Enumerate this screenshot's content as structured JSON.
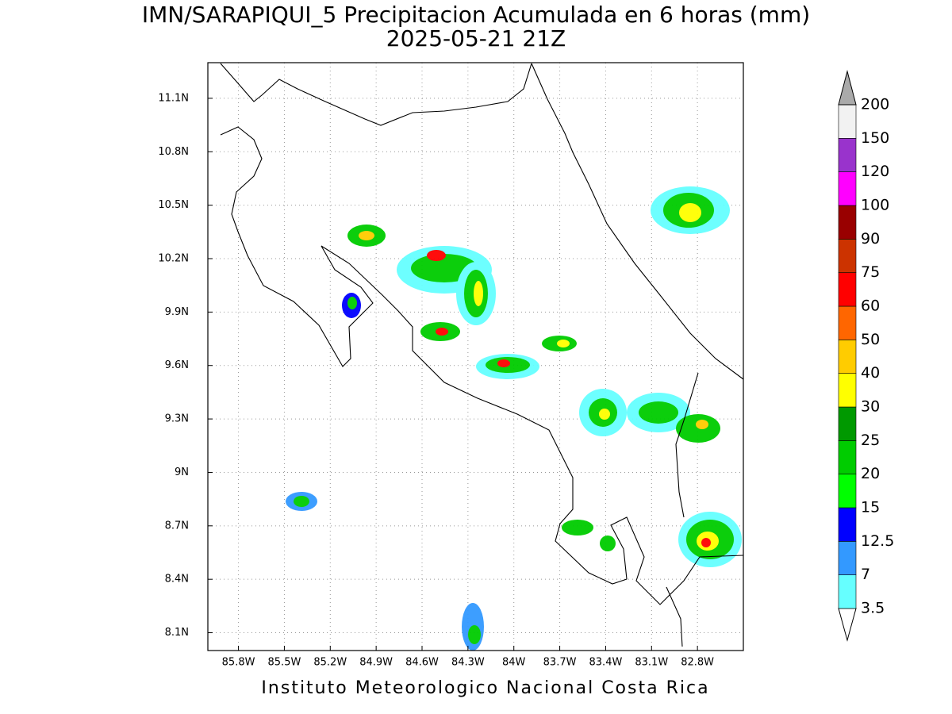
{
  "chart_data": {
    "type": "map",
    "title": "IMN/SARAPIQUI_5 Precipitacion Acumulada en 6 horas (mm)",
    "subtitle": "2025-05-21 21Z",
    "footer": "Instituto Meteorologico Nacional Costa Rica",
    "xlim": [
      -86.0,
      -82.5
    ],
    "ylim": [
      8.0,
      11.3
    ],
    "xticks": [
      {
        "value": -85.8,
        "label": "85.8W"
      },
      {
        "value": -85.5,
        "label": "85.5W"
      },
      {
        "value": -85.2,
        "label": "85.2W"
      },
      {
        "value": -84.9,
        "label": "84.9W"
      },
      {
        "value": -84.6,
        "label": "84.6W"
      },
      {
        "value": -84.3,
        "label": "84.3W"
      },
      {
        "value": -84.0,
        "label": "84W"
      },
      {
        "value": -83.7,
        "label": "83.7W"
      },
      {
        "value": -83.4,
        "label": "83.4W"
      },
      {
        "value": -83.1,
        "label": "83.1W"
      },
      {
        "value": -82.8,
        "label": "82.8W"
      }
    ],
    "yticks": [
      {
        "value": 8.1,
        "label": "8.1N"
      },
      {
        "value": 8.4,
        "label": "8.4N"
      },
      {
        "value": 8.7,
        "label": "8.7N"
      },
      {
        "value": 9.0,
        "label": "9N"
      },
      {
        "value": 9.3,
        "label": "9.3N"
      },
      {
        "value": 9.6,
        "label": "9.6N"
      },
      {
        "value": 9.9,
        "label": "9.9N"
      },
      {
        "value": 10.2,
        "label": "10.2N"
      },
      {
        "value": 10.5,
        "label": "10.5N"
      },
      {
        "value": 10.8,
        "label": "10.8N"
      },
      {
        "value": 11.1,
        "label": "11.1N"
      }
    ],
    "grid": true,
    "levels": [
      3.5,
      7,
      12.5,
      15,
      20,
      25,
      30,
      40,
      50,
      60,
      75,
      90,
      100,
      120,
      150,
      200
    ],
    "colors": [
      "#ffffff",
      "#66ffff",
      "#3399ff",
      "#0000ff",
      "#00ff00",
      "#00cc00",
      "#009900",
      "#ffff00",
      "#ffcc00",
      "#ff6600",
      "#ff0000",
      "#cc3300",
      "#990000",
      "#ff00ff",
      "#9933cc",
      "#f2f2f2",
      "#aaaaaa"
    ]
  }
}
